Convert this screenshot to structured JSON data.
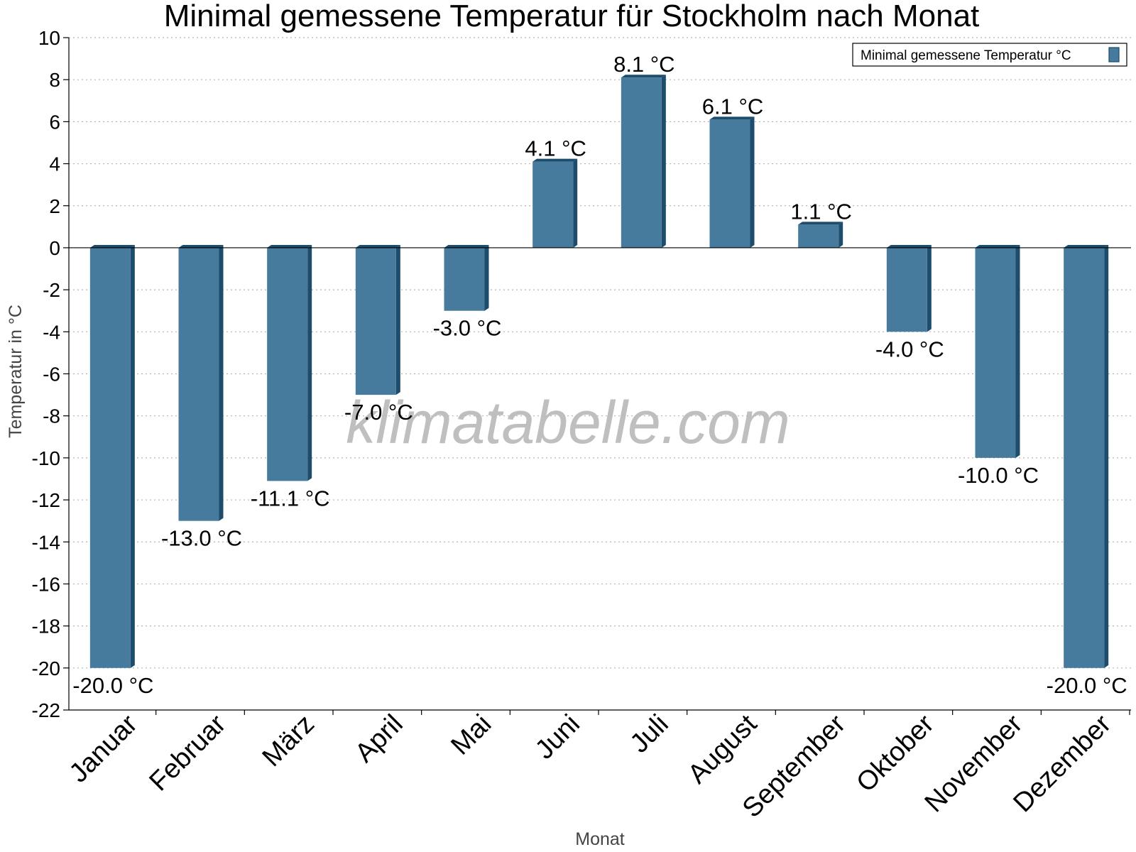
{
  "chart_data": {
    "type": "bar",
    "title": "Minimal gemessene Temperatur für Stockholm nach Monat",
    "xlabel": "Monat",
    "ylabel": "Temperatur in °C",
    "categories": [
      "Januar",
      "Februar",
      "März",
      "April",
      "Mai",
      "Juni",
      "Juli",
      "August",
      "September",
      "Oktober",
      "November",
      "Dezember"
    ],
    "series": [
      {
        "name": "Minimal gemessene Temperatur °C",
        "values": [
          -20.0,
          -13.0,
          -11.1,
          -7.0,
          -3.0,
          4.1,
          8.1,
          6.1,
          1.1,
          -4.0,
          -10.0,
          -20.0
        ],
        "data_labels": [
          "-20.0 °C",
          "-13.0 °C",
          "-11.1 °C",
          "-7.0 °C",
          "-3.0 °C",
          "4.1 °C",
          "8.1 °C",
          "6.1 °C",
          "1.1 °C",
          "-4.0 °C",
          "-10.0 °C",
          "-20.0 °C"
        ],
        "color": "#467b9d",
        "side_color": "#1d4c6c"
      }
    ],
    "ylim": [
      -22,
      10
    ],
    "yticks": [
      10,
      8,
      6,
      4,
      2,
      0,
      -2,
      -4,
      -6,
      -8,
      -10,
      -12,
      -14,
      -16,
      -18,
      -20,
      -22
    ],
    "grid": true,
    "legend_position": "top-right",
    "watermark": "klimatabelle.com"
  }
}
